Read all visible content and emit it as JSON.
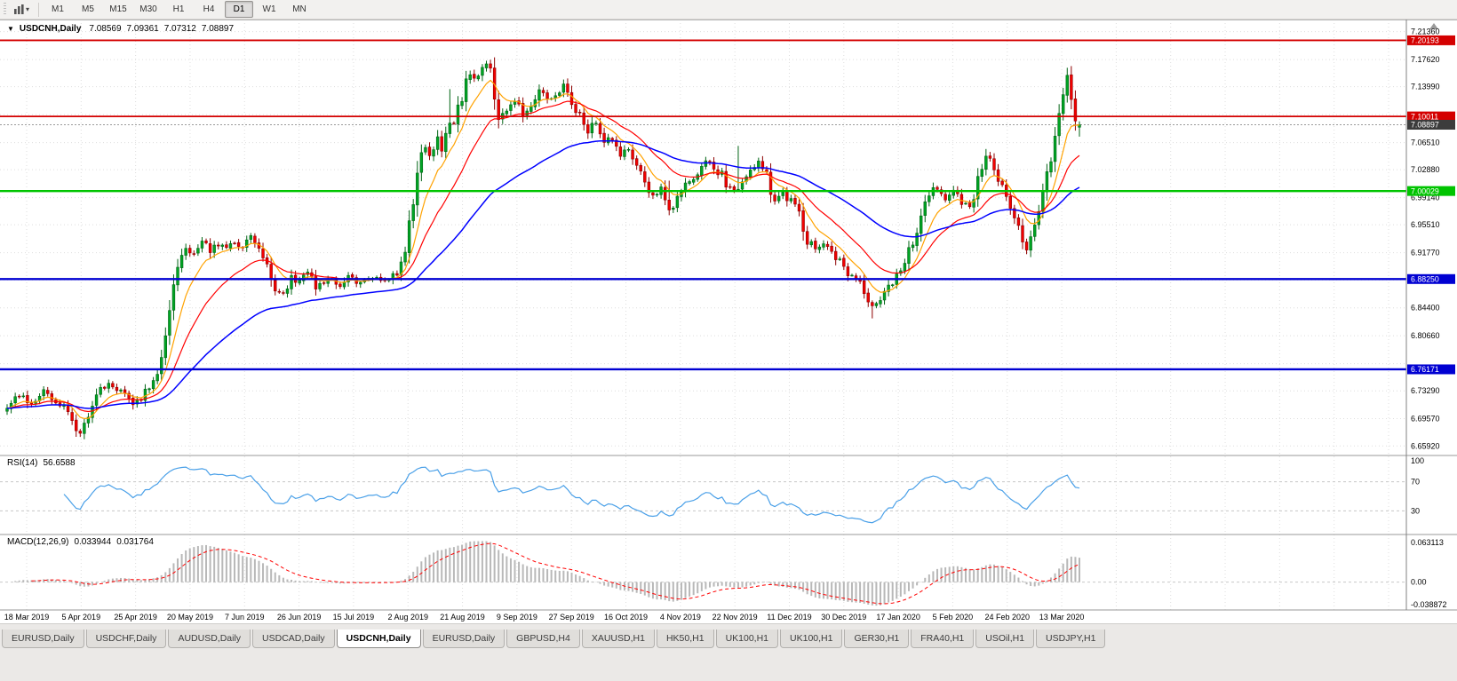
{
  "icons": {
    "symbol_marker": "▼",
    "caret": "▾",
    "scroll_up": "▲"
  },
  "toolbar": {
    "timeframes": [
      "M1",
      "M5",
      "M15",
      "M30",
      "H1",
      "H4",
      "D1",
      "W1",
      "MN"
    ],
    "active": "D1"
  },
  "chart": {
    "info": {
      "symbol": "USDCNH,Daily",
      "open": "7.08569",
      "high": "7.09361",
      "low": "7.07312",
      "close": "7.08897"
    }
  },
  "chart_data": {
    "type": "candlestick",
    "title": "USDCNH,Daily",
    "legend_note": "candles with 3 moving averages, RSI and MACD subwindows",
    "price_scale": {
      "min": 6.65,
      "max": 7.225,
      "ticks": [
        [
          "7.21360",
          1
        ],
        [
          "7.17620",
          1
        ],
        [
          "7.13990",
          1
        ],
        [
          "7.10250",
          0
        ],
        [
          "7.06510",
          1
        ],
        [
          "7.02880",
          1
        ],
        [
          "6.99140",
          1
        ],
        [
          "6.95510",
          1
        ],
        [
          "6.91770",
          1
        ],
        [
          "6.88140",
          0
        ],
        [
          "6.84400",
          1
        ],
        [
          "6.80660",
          1
        ],
        [
          "6.76920",
          0
        ],
        [
          "6.73290",
          1
        ],
        [
          "6.69570",
          1
        ],
        [
          "6.65920",
          1
        ]
      ]
    },
    "dates": [
      "18 Mar 2019",
      "5 Apr 2019",
      "25 Apr 2019",
      "20 May 2019",
      "7 Jun 2019",
      "26 Jun 2019",
      "15 Jul 2019",
      "2 Aug 2019",
      "21 Aug 2019",
      "9 Sep 2019",
      "27 Sep 2019",
      "16 Oct 2019",
      "4 Nov 2019",
      "22 Nov 2019",
      "11 Dec 2019",
      "30 Dec 2019",
      "17 Jan 2020",
      "5 Feb 2020",
      "24 Feb 2020",
      "13 Mar 2020"
    ],
    "hlines": [
      {
        "price": "7.20193",
        "color": "#d40000",
        "width": 1.8
      },
      {
        "price": "7.10011",
        "color": "#d40000",
        "width": 1.8
      },
      {
        "price": "7.00029",
        "color": "#00c400",
        "width": 2.4
      },
      {
        "price": "6.88250",
        "color": "#0000d2",
        "width": 2.4
      },
      {
        "price": "6.76171",
        "color": "#0000d2",
        "width": 2.4
      }
    ],
    "current": {
      "price": "7.08897",
      "line_color": "#9a9a9a",
      "badge_color": "#3c3c3c"
    },
    "last_candle": {
      "o": "7.08569",
      "h": "7.09361",
      "l": "7.07312",
      "c": "7.08897"
    },
    "candles": {
      "up_fill": "#00a524",
      "up_border": "#006414",
      "down_fill": "#f20000",
      "down_border": "#8e0000"
    },
    "moving_averages": [
      {
        "period": 8,
        "color": "#ffa200"
      },
      {
        "period": 20,
        "color": "#ff0000"
      },
      {
        "period": 55,
        "color": "#0000ff"
      }
    ],
    "price_path": [
      [
        0,
        6.712
      ],
      [
        3,
        6.728
      ],
      [
        6,
        6.715
      ],
      [
        9,
        6.733
      ],
      [
        12,
        6.72
      ],
      [
        15,
        6.705
      ],
      [
        18,
        6.677
      ],
      [
        20,
        6.7
      ],
      [
        22,
        6.728
      ],
      [
        25,
        6.742
      ],
      [
        28,
        6.734
      ],
      [
        31,
        6.716
      ],
      [
        34,
        6.73
      ],
      [
        36,
        6.74
      ],
      [
        38,
        6.78
      ],
      [
        40,
        6.845
      ],
      [
        42,
        6.898
      ],
      [
        44,
        6.924
      ],
      [
        46,
        6.916
      ],
      [
        48,
        6.934
      ],
      [
        50,
        6.92
      ],
      [
        52,
        6.93
      ],
      [
        54,
        6.924
      ],
      [
        56,
        6.934
      ],
      [
        58,
        6.928
      ],
      [
        60,
        6.942
      ],
      [
        62,
        6.924
      ],
      [
        64,
        6.898
      ],
      [
        66,
        6.868
      ],
      [
        68,
        6.86
      ],
      [
        70,
        6.882
      ],
      [
        72,
        6.878
      ],
      [
        74,
        6.888
      ],
      [
        76,
        6.872
      ],
      [
        78,
        6.88
      ],
      [
        80,
        6.886
      ],
      [
        82,
        6.876
      ],
      [
        84,
        6.884
      ],
      [
        86,
        6.878
      ],
      [
        88,
        6.882
      ],
      [
        90,
        6.884
      ],
      [
        92,
        6.878
      ],
      [
        94,
        6.886
      ],
      [
        96,
        6.89
      ],
      [
        98,
        6.92
      ],
      [
        100,
        6.988
      ],
      [
        101,
        7.018
      ],
      [
        102,
        7.044
      ],
      [
        103,
        7.058
      ],
      [
        104,
        7.048
      ],
      [
        105,
        7.062
      ],
      [
        106,
        7.072
      ],
      [
        107,
        7.058
      ],
      [
        108,
        7.082
      ],
      [
        110,
        7.09
      ],
      [
        112,
        7.128
      ],
      [
        114,
        7.158
      ],
      [
        116,
        7.15
      ],
      [
        118,
        7.168
      ],
      [
        119,
        7.158
      ],
      [
        120,
        7.128
      ],
      [
        121,
        7.096
      ],
      [
        122,
        7.102
      ],
      [
        123,
        7.114
      ],
      [
        125,
        7.12
      ],
      [
        127,
        7.104
      ],
      [
        129,
        7.12
      ],
      [
        131,
        7.138
      ],
      [
        133,
        7.128
      ],
      [
        135,
        7.124
      ],
      [
        137,
        7.146
      ],
      [
        139,
        7.118
      ],
      [
        141,
        7.098
      ],
      [
        143,
        7.082
      ],
      [
        145,
        7.09
      ],
      [
        147,
        7.07
      ],
      [
        149,
        7.064
      ],
      [
        151,
        7.044
      ],
      [
        153,
        7.058
      ],
      [
        155,
        7.034
      ],
      [
        157,
        7.012
      ],
      [
        159,
        6.994
      ],
      [
        161,
        7.002
      ],
      [
        163,
        6.976
      ],
      [
        165,
        6.992
      ],
      [
        167,
        7.008
      ],
      [
        169,
        7.02
      ],
      [
        171,
        7.03
      ],
      [
        173,
        7.04
      ],
      [
        175,
        7.028
      ],
      [
        177,
        7.012
      ],
      [
        179,
        7.002
      ],
      [
        181,
        7.008
      ],
      [
        183,
        7.026
      ],
      [
        185,
        7.04
      ],
      [
        187,
        7.018
      ],
      [
        189,
        6.984
      ],
      [
        191,
        6.998
      ],
      [
        193,
        6.988
      ],
      [
        195,
        6.97
      ],
      [
        197,
        6.934
      ],
      [
        199,
        6.922
      ],
      [
        201,
        6.93
      ],
      [
        203,
        6.92
      ],
      [
        205,
        6.904
      ],
      [
        207,
        6.89
      ],
      [
        209,
        6.886
      ],
      [
        211,
        6.866
      ],
      [
        213,
        6.846
      ],
      [
        215,
        6.858
      ],
      [
        217,
        6.872
      ],
      [
        219,
        6.888
      ],
      [
        221,
        6.906
      ],
      [
        223,
        6.936
      ],
      [
        225,
        6.966
      ],
      [
        227,
        6.992
      ],
      [
        229,
        7.006
      ],
      [
        231,
        6.986
      ],
      [
        233,
        6.998
      ],
      [
        235,
        6.984
      ],
      [
        237,
        6.974
      ],
      [
        239,
        7.018
      ],
      [
        241,
        7.046
      ],
      [
        243,
        7.028
      ],
      [
        245,
        7.004
      ],
      [
        247,
        6.978
      ],
      [
        249,
        6.952
      ],
      [
        251,
        6.925
      ],
      [
        253,
        6.95
      ],
      [
        255,
        6.996
      ],
      [
        256,
        7.02
      ],
      [
        257,
        7.044
      ],
      [
        258,
        7.074
      ],
      [
        259,
        7.104
      ],
      [
        260,
        7.136
      ],
      [
        261,
        7.158
      ],
      [
        262,
        7.124
      ],
      [
        263,
        7.094
      ],
      [
        264,
        7.089
      ]
    ],
    "spikes": [
      [
        109,
        0.038,
        0
      ],
      [
        163,
        0.02,
        0
      ],
      [
        180,
        0.055,
        0
      ],
      [
        213,
        0,
        0.012
      ]
    ],
    "rsi": {
      "label": "RSI(14)",
      "value": "56.6588",
      "color": "#4aa0e8",
      "levels": [
        70,
        30
      ],
      "axis_labels": [
        "100",
        "70",
        "30"
      ]
    },
    "macd": {
      "label": "MACD(12,26,9)",
      "main_value": "0.033944",
      "signal_value": "0.031764",
      "axis_labels": [
        "0.063113",
        "0.00",
        "-0.038872"
      ],
      "scale_max": 0.063113,
      "scale_min": -0.038872,
      "hist_color": "#b8b8b8",
      "signal_color": "#ff0000"
    }
  },
  "tabs": {
    "items": [
      "EURUSD,Daily",
      "USDCHF,Daily",
      "AUDUSD,Daily",
      "USDCAD,Daily",
      "USDCNH,Daily",
      "EURUSD,Daily",
      "GBPUSD,H4",
      "XAUUSD,H1",
      "HK50,H1",
      "UK100,H1",
      "UK100,H1",
      "GER30,H1",
      "FRA40,H1",
      "USOil,H1",
      "USDJPY,H1"
    ],
    "active_index": 4
  }
}
